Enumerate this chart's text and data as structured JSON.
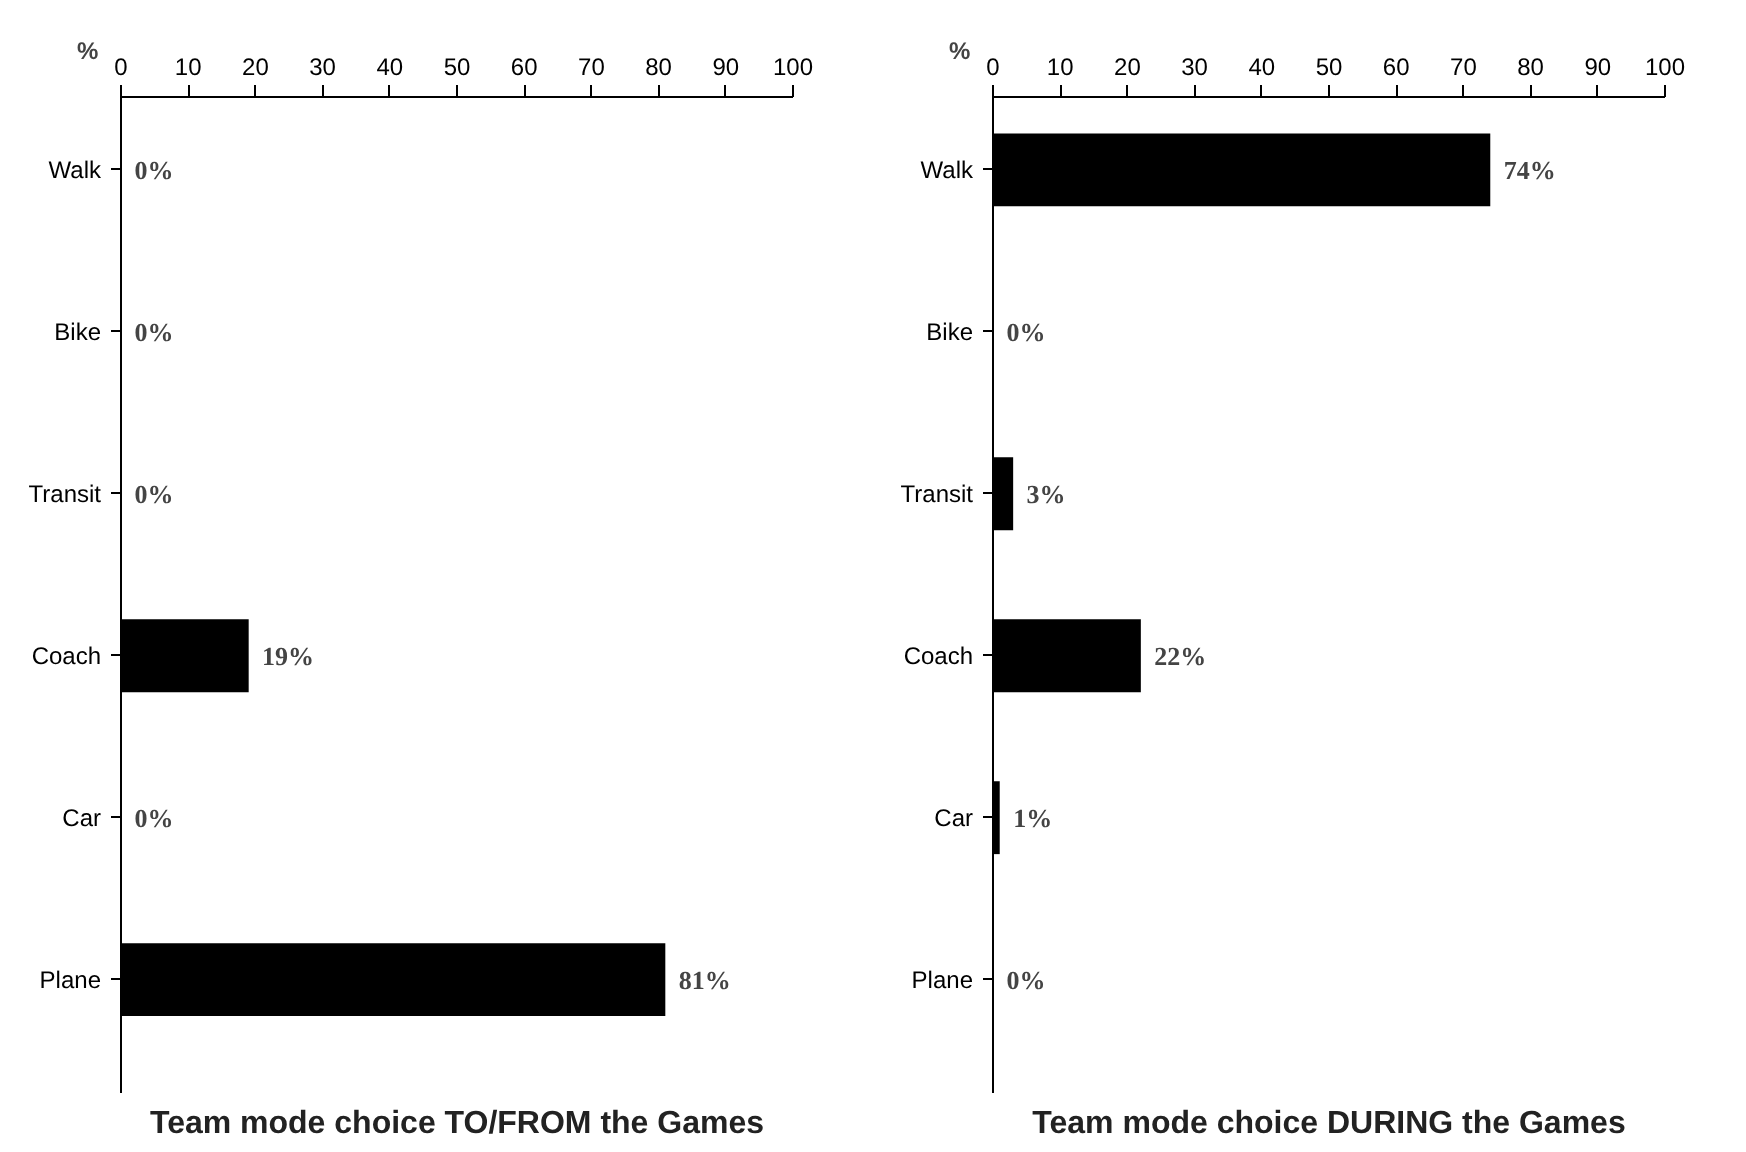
{
  "chart_data": [
    {
      "type": "bar",
      "orientation": "horizontal",
      "title": "Team mode choice TO/FROM the Games",
      "xlabel": "%",
      "categories": [
        "Walk",
        "Bike",
        "Transit",
        "Coach",
        "Car",
        "Plane"
      ],
      "values": [
        0,
        0,
        0,
        19,
        0,
        81
      ],
      "value_labels": [
        "0%",
        "0%",
        "0%",
        "19%",
        "0%",
        "81%"
      ],
      "color": "#000000",
      "xlim": [
        0,
        100
      ],
      "xticks": [
        0,
        10,
        20,
        30,
        40,
        50,
        60,
        70,
        80,
        90,
        100
      ],
      "grid": false
    },
    {
      "type": "bar",
      "orientation": "horizontal",
      "title": "Team mode choice DURING the Games",
      "xlabel": "%",
      "categories": [
        "Walk",
        "Bike",
        "Transit",
        "Coach",
        "Car",
        "Plane"
      ],
      "values": [
        74,
        0,
        3,
        22,
        1,
        0
      ],
      "value_labels": [
        "74%",
        "0%",
        "3%",
        "22%",
        "1%",
        "0%"
      ],
      "color": "#000000",
      "xlim": [
        0,
        100
      ],
      "xticks": [
        0,
        10,
        20,
        30,
        40,
        50,
        60,
        70,
        80,
        90,
        100
      ],
      "grid": false
    }
  ]
}
